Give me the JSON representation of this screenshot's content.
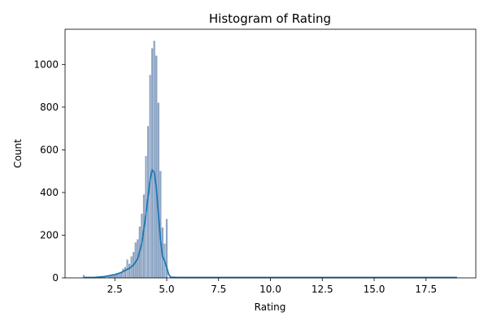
{
  "chart_data": {
    "type": "bar",
    "title": "Histogram of Rating",
    "xlabel": "Rating",
    "ylabel": "Count",
    "xlim": [
      0.1,
      19.9
    ],
    "ylim": [
      0,
      1165
    ],
    "xticks": [
      2.5,
      5.0,
      7.5,
      10.0,
      12.5,
      15.0,
      17.5
    ],
    "xtick_labels": [
      "2.5",
      "5.0",
      "7.5",
      "10.0",
      "12.5",
      "15.0",
      "17.5"
    ],
    "yticks": [
      0,
      200,
      400,
      600,
      800,
      1000
    ],
    "ytick_labels": [
      "0",
      "200",
      "400",
      "600",
      "800",
      "1000"
    ],
    "bar_color": "#8fa8c8",
    "kde_color": "#1f77b4",
    "bars": [
      {
        "x": 1.0,
        "count": 12
      },
      {
        "x": 1.2,
        "count": 3
      },
      {
        "x": 1.5,
        "count": 2
      },
      {
        "x": 1.7,
        "count": 4
      },
      {
        "x": 1.8,
        "count": 5
      },
      {
        "x": 2.0,
        "count": 6
      },
      {
        "x": 2.2,
        "count": 10
      },
      {
        "x": 2.3,
        "count": 8
      },
      {
        "x": 2.4,
        "count": 16
      },
      {
        "x": 2.5,
        "count": 13
      },
      {
        "x": 2.6,
        "count": 22
      },
      {
        "x": 2.7,
        "count": 18
      },
      {
        "x": 2.8,
        "count": 28
      },
      {
        "x": 2.9,
        "count": 42
      },
      {
        "x": 3.0,
        "count": 50
      },
      {
        "x": 3.1,
        "count": 85
      },
      {
        "x": 3.2,
        "count": 65
      },
      {
        "x": 3.3,
        "count": 100
      },
      {
        "x": 3.4,
        "count": 120
      },
      {
        "x": 3.5,
        "count": 165
      },
      {
        "x": 3.6,
        "count": 180
      },
      {
        "x": 3.7,
        "count": 240
      },
      {
        "x": 3.8,
        "count": 300
      },
      {
        "x": 3.9,
        "count": 390
      },
      {
        "x": 4.0,
        "count": 570
      },
      {
        "x": 4.1,
        "count": 710
      },
      {
        "x": 4.2,
        "count": 950
      },
      {
        "x": 4.3,
        "count": 1075
      },
      {
        "x": 4.4,
        "count": 1110
      },
      {
        "x": 4.5,
        "count": 1040
      },
      {
        "x": 4.6,
        "count": 820
      },
      {
        "x": 4.7,
        "count": 500
      },
      {
        "x": 4.8,
        "count": 235
      },
      {
        "x": 4.9,
        "count": 160
      },
      {
        "x": 5.0,
        "count": 275
      }
    ],
    "kde": [
      {
        "x": 1.0,
        "y": 2
      },
      {
        "x": 1.5,
        "y": 2
      },
      {
        "x": 2.0,
        "y": 6
      },
      {
        "x": 2.5,
        "y": 15
      },
      {
        "x": 2.8,
        "y": 25
      },
      {
        "x": 3.0,
        "y": 35
      },
      {
        "x": 3.2,
        "y": 45
      },
      {
        "x": 3.4,
        "y": 60
      },
      {
        "x": 3.6,
        "y": 90
      },
      {
        "x": 3.8,
        "y": 160
      },
      {
        "x": 4.0,
        "y": 300
      },
      {
        "x": 4.2,
        "y": 460
      },
      {
        "x": 4.3,
        "y": 505
      },
      {
        "x": 4.4,
        "y": 495
      },
      {
        "x": 4.5,
        "y": 420
      },
      {
        "x": 4.6,
        "y": 300
      },
      {
        "x": 4.7,
        "y": 180
      },
      {
        "x": 4.8,
        "y": 100
      },
      {
        "x": 4.9,
        "y": 80
      },
      {
        "x": 5.0,
        "y": 50
      },
      {
        "x": 5.1,
        "y": 15
      },
      {
        "x": 5.2,
        "y": 3
      },
      {
        "x": 5.5,
        "y": 2
      },
      {
        "x": 7.0,
        "y": 2
      },
      {
        "x": 10.0,
        "y": 2
      },
      {
        "x": 13.0,
        "y": 2
      },
      {
        "x": 16.0,
        "y": 2
      },
      {
        "x": 19.0,
        "y": 2
      }
    ]
  }
}
